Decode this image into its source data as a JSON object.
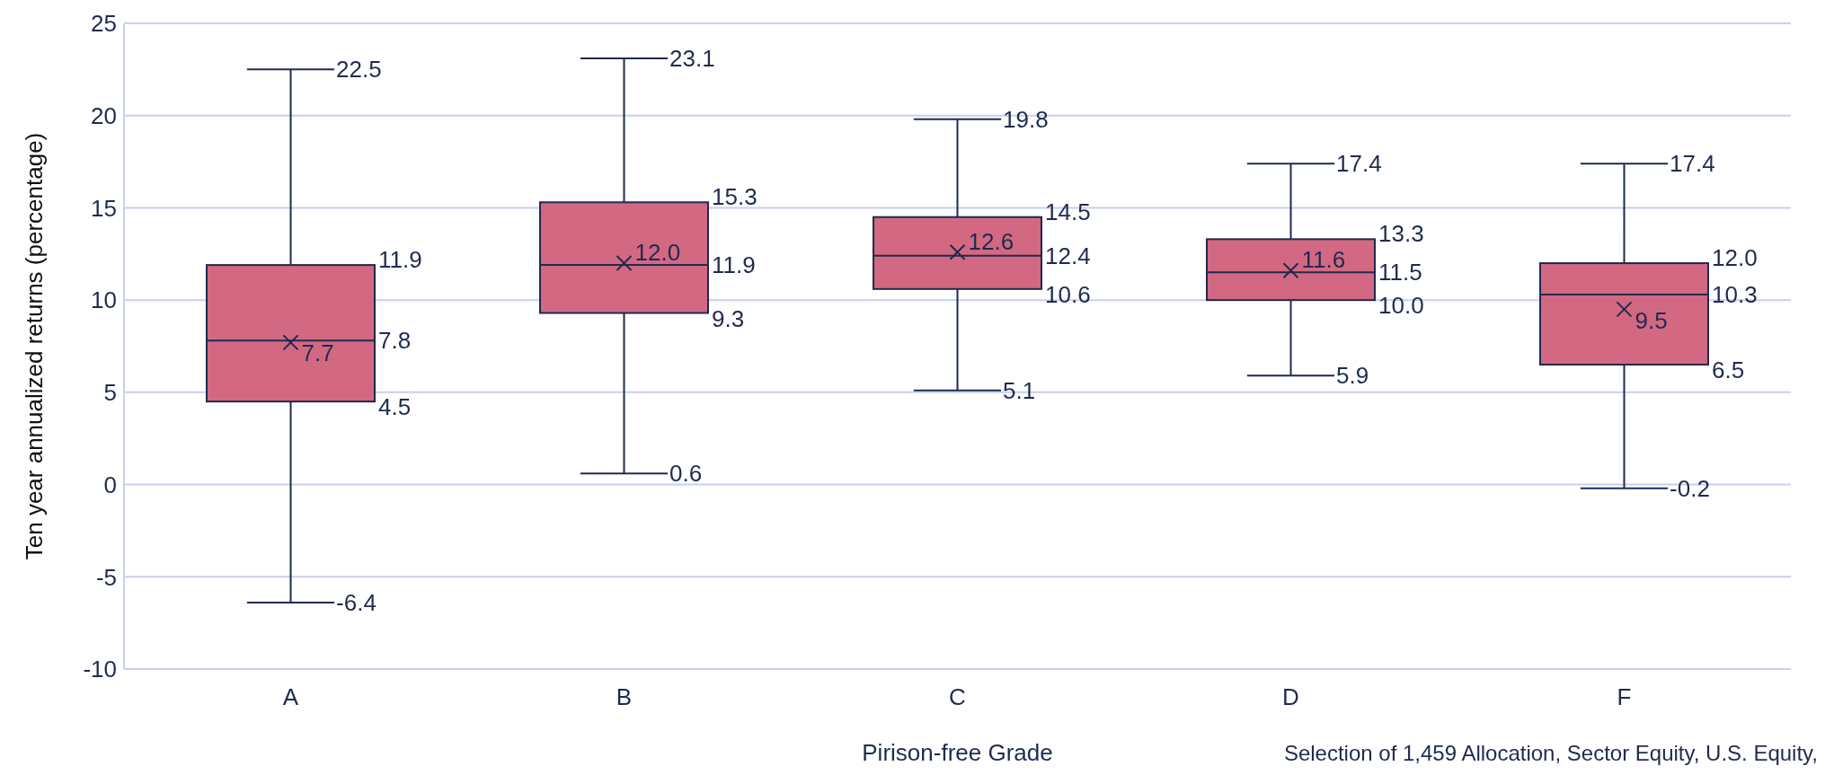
{
  "chart_data": {
    "type": "box",
    "xlabel": "Pirison-free Grade",
    "ylabel": "Ten year annualized returns (percentage)",
    "categories": [
      "A",
      "B",
      "C",
      "D",
      "F"
    ],
    "boxes": [
      {
        "low": -6.4,
        "q1": 4.5,
        "median": 7.8,
        "q3": 11.9,
        "high": 22.5,
        "mean": 7.7
      },
      {
        "low": 0.6,
        "q1": 9.3,
        "median": 11.9,
        "q3": 15.3,
        "high": 23.1,
        "mean": 12.0
      },
      {
        "low": 5.1,
        "q1": 10.6,
        "median": 12.4,
        "q3": 14.5,
        "high": 19.8,
        "mean": 12.6
      },
      {
        "low": 5.9,
        "q1": 10.0,
        "median": 11.5,
        "q3": 13.3,
        "high": 17.4,
        "mean": 11.6
      },
      {
        "low": -0.2,
        "q1": 6.5,
        "median": 10.3,
        "q3": 12.0,
        "high": 17.4,
        "mean": 9.5
      }
    ],
    "color": "#d36882",
    "ylim": [
      -10,
      25
    ],
    "yticks": [
      -10,
      -5,
      0,
      5,
      10,
      15,
      20,
      25
    ],
    "grid": "y",
    "annotations": [
      "22.5",
      "11.9",
      "7.8",
      "7.7",
      "4.5",
      "-6.4",
      "23.1",
      "15.3",
      "11.9",
      "12.0",
      "9.3",
      "0.6",
      "19.8",
      "14.5",
      "12.4",
      "12.6",
      "10.6",
      "5.1",
      "17.4",
      "13.3",
      "11.5",
      "11.6",
      "10.0",
      "5.9",
      "17.4",
      "12.0",
      "10.3",
      "9.5",
      "6.5",
      "-0.2",
      "Selection of 1,459 Allocation, Sector Equity, U.S. Equity,"
    ]
  }
}
